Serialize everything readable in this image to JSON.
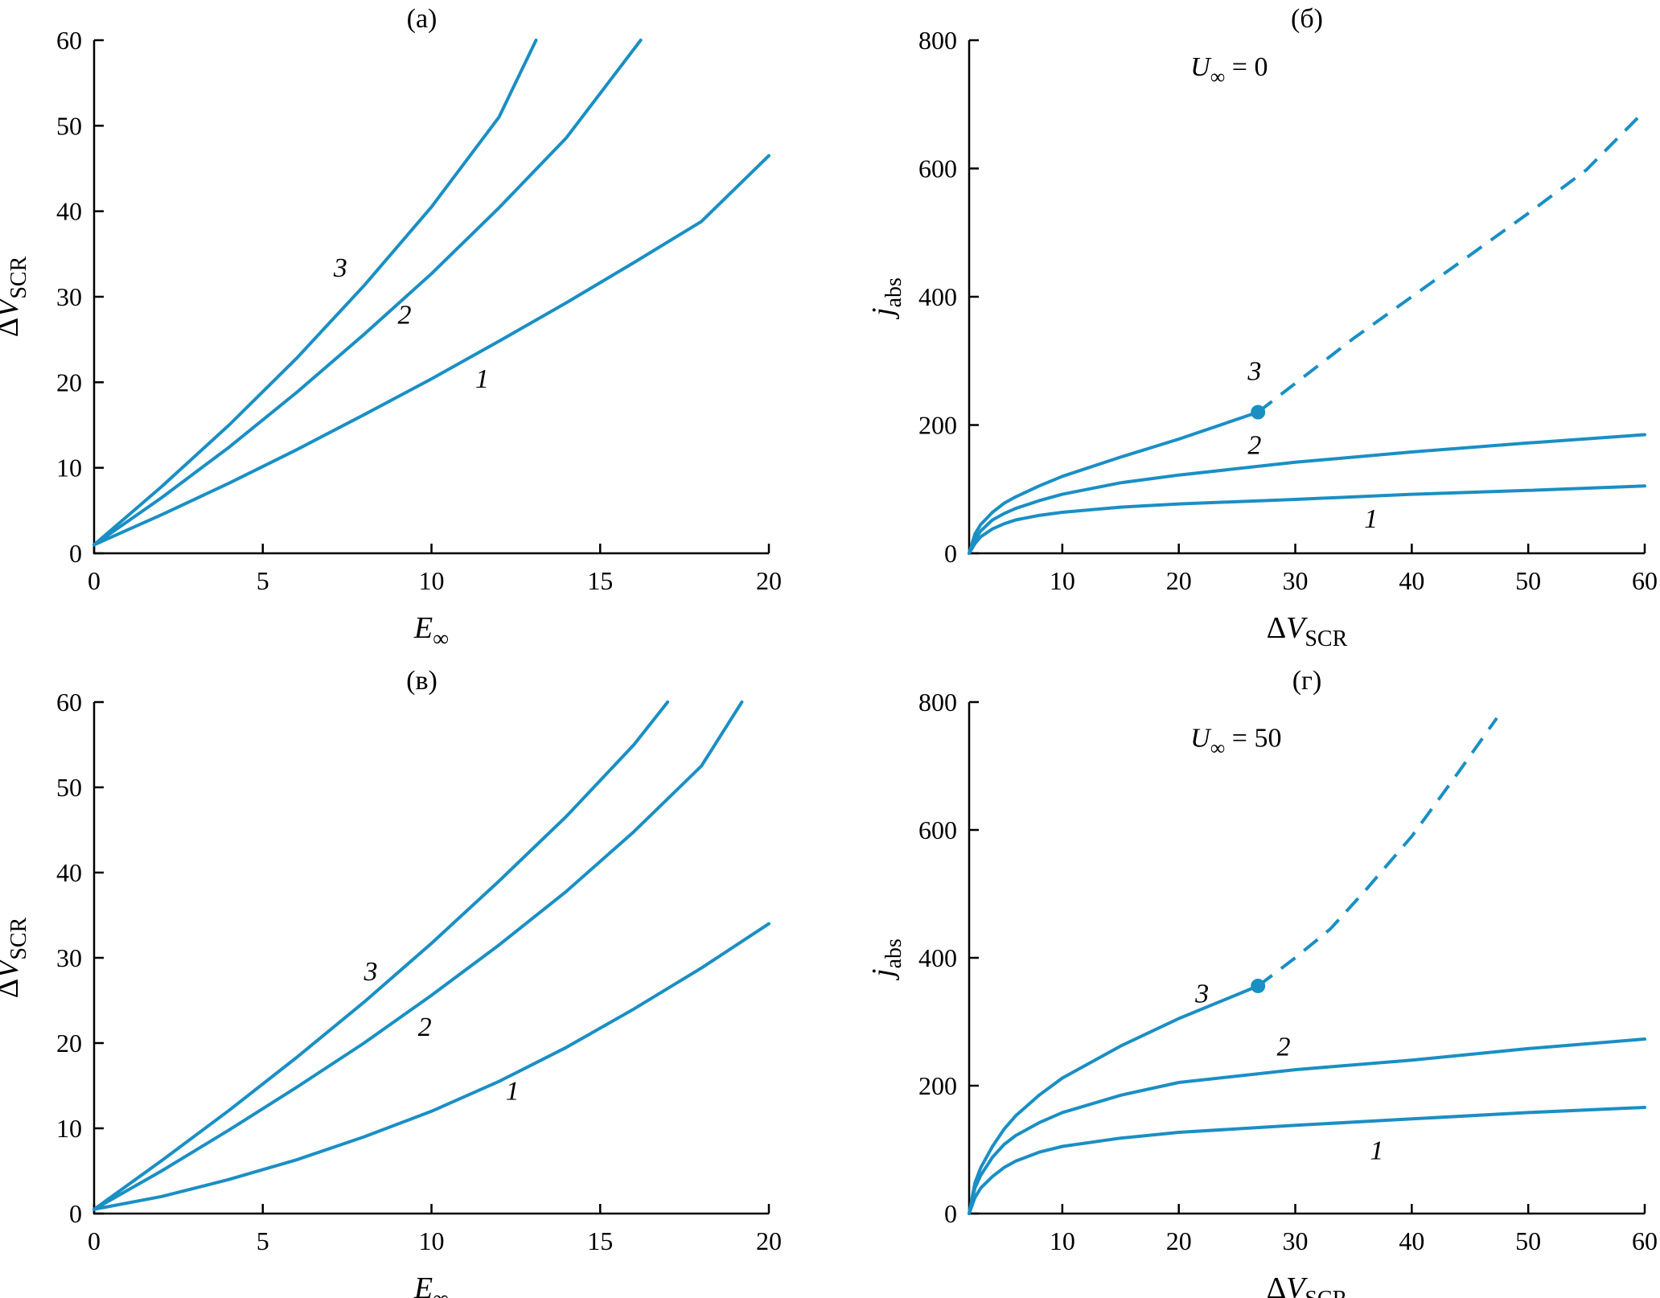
{
  "chart_data": [
    {
      "id": "a",
      "type": "line",
      "title": "(а)",
      "xlabel": "E",
      "xlabel_sub": "∞",
      "ylabel_prefix": "Δ",
      "ylabel": "V",
      "ylabel_sub": "SCR",
      "xlim": [
        0,
        20
      ],
      "ylim": [
        0,
        60
      ],
      "xticks": [
        0,
        5,
        10,
        15,
        20
      ],
      "yticks": [
        0,
        10,
        20,
        30,
        40,
        50,
        60
      ],
      "annotation": null,
      "series": [
        {
          "label": "1",
          "label_at": [
            11.5,
            20.5
          ],
          "x": [
            0,
            2,
            4,
            6,
            8,
            10,
            12,
            14,
            16,
            18,
            20
          ],
          "y": [
            1,
            4.5,
            8.2,
            12.1,
            16.2,
            20.4,
            24.8,
            29.3,
            34.0,
            38.8,
            46.5
          ]
        },
        {
          "label": "2",
          "label_at": [
            9.2,
            28.0
          ],
          "x": [
            0,
            2,
            4,
            6,
            8,
            10,
            12,
            14,
            16.2
          ],
          "y": [
            1,
            6.5,
            12.4,
            18.8,
            25.6,
            32.7,
            40.4,
            48.6,
            60
          ]
        },
        {
          "label": "3",
          "label_at": [
            7.3,
            33.5
          ],
          "x": [
            0,
            2,
            4,
            6,
            8,
            10,
            12,
            13.1
          ],
          "y": [
            1,
            7.8,
            15.0,
            22.8,
            31.3,
            40.5,
            51.0,
            60
          ]
        }
      ]
    },
    {
      "id": "b",
      "type": "line",
      "title": "(б)",
      "xlabel_prefix": "Δ",
      "xlabel": "V",
      "xlabel_sub": "SCR",
      "ylabel": "j",
      "ylabel_sub": "abs",
      "xlim": [
        2,
        60
      ],
      "ylim": [
        0,
        800
      ],
      "xticks": [
        10,
        20,
        30,
        40,
        50,
        60
      ],
      "yticks": [
        0,
        200,
        400,
        600,
        800
      ],
      "annotation": {
        "var": "U",
        "sub": "∞",
        "text": " = 0",
        "at": [
          21,
          745
        ]
      },
      "series": [
        {
          "label": "1",
          "label_at": [
            36.5,
            55
          ],
          "x": [
            2,
            2.5,
            3,
            4,
            5,
            6,
            8,
            10,
            15,
            20,
            30,
            40,
            50,
            60
          ],
          "y": [
            0,
            15,
            26,
            38,
            46,
            52,
            59,
            64,
            72,
            77,
            84,
            92,
            98,
            105
          ]
        },
        {
          "label": "2",
          "label_at": [
            26.5,
            170
          ],
          "x": [
            2,
            2.5,
            3,
            4,
            5,
            6,
            8,
            10,
            15,
            20,
            30,
            40,
            50,
            60
          ],
          "y": [
            0,
            22,
            35,
            52,
            62,
            70,
            82,
            92,
            110,
            122,
            142,
            158,
            172,
            185
          ]
        },
        {
          "label": "3",
          "label_at": [
            26.5,
            285
          ],
          "x": [
            2,
            2.5,
            3,
            4,
            5,
            6,
            8,
            10,
            15,
            20,
            26.8
          ],
          "y": [
            0,
            30,
            45,
            64,
            78,
            88,
            105,
            120,
            150,
            178,
            220
          ],
          "marker_end": true
        },
        {
          "x": [
            26.8,
            30,
            35,
            40,
            45,
            50,
            55,
            60
          ],
          "y": [
            220,
            265,
            335,
            400,
            465,
            530,
            598,
            690
          ],
          "dashed": true
        }
      ]
    },
    {
      "id": "v",
      "type": "line",
      "title": "(в)",
      "xlabel": "E",
      "xlabel_sub": "∞",
      "ylabel_prefix": "Δ",
      "ylabel": "V",
      "ylabel_sub": "SCR",
      "xlim": [
        0,
        20
      ],
      "ylim": [
        0,
        60
      ],
      "xticks": [
        0,
        5,
        10,
        15,
        20
      ],
      "yticks": [
        0,
        10,
        20,
        30,
        40,
        50,
        60
      ],
      "annotation": null,
      "series": [
        {
          "label": "1",
          "label_at": [
            12.4,
            14.5
          ],
          "x": [
            0,
            2,
            4,
            6,
            8,
            10,
            12,
            14,
            16,
            18,
            20
          ],
          "y": [
            0.5,
            2.0,
            4.0,
            6.3,
            9.0,
            12.0,
            15.5,
            19.5,
            24.0,
            28.8,
            34.0
          ]
        },
        {
          "label": "2",
          "label_at": [
            9.8,
            22.0
          ],
          "x": [
            0,
            2,
            4,
            6,
            8,
            10,
            12,
            14,
            16,
            18,
            19.2
          ],
          "y": [
            0.5,
            5.0,
            9.8,
            14.8,
            20.0,
            25.6,
            31.5,
            37.8,
            44.8,
            52.5,
            60
          ]
        },
        {
          "label": "3",
          "label_at": [
            8.2,
            28.5
          ],
          "x": [
            0,
            2,
            4,
            6,
            8,
            10,
            12,
            14,
            16,
            17.0
          ],
          "y": [
            0.5,
            6.2,
            12.1,
            18.3,
            24.8,
            31.7,
            39.0,
            46.6,
            55.0,
            60
          ]
        }
      ]
    },
    {
      "id": "g",
      "type": "line",
      "title": "(г)",
      "xlabel_prefix": "Δ",
      "xlabel": "V",
      "xlabel_sub": "SCR",
      "ylabel": "j",
      "ylabel_sub": "abs",
      "xlim": [
        2,
        60
      ],
      "ylim": [
        0,
        800
      ],
      "xticks": [
        10,
        20,
        30,
        40,
        50,
        60
      ],
      "yticks": [
        0,
        200,
        400,
        600,
        800
      ],
      "annotation": {
        "var": "U",
        "sub": "∞",
        "text": " = 50",
        "at": [
          21,
          730
        ]
      },
      "series": [
        {
          "label": "1",
          "label_at": [
            37,
            100
          ],
          "x": [
            2,
            2.5,
            3,
            4,
            5,
            6,
            8,
            10,
            15,
            20,
            30,
            40,
            50,
            60
          ],
          "y": [
            0,
            25,
            40,
            58,
            72,
            82,
            96,
            105,
            118,
            127,
            138,
            148,
            158,
            166
          ]
        },
        {
          "label": "2",
          "label_at": [
            29,
            262
          ],
          "x": [
            2,
            2.5,
            3,
            4,
            5,
            6,
            8,
            10,
            15,
            20,
            30,
            40,
            50,
            60
          ],
          "y": [
            0,
            40,
            60,
            88,
            108,
            122,
            142,
            158,
            185,
            205,
            225,
            240,
            258,
            273
          ]
        },
        {
          "label": "3",
          "label_at": [
            22,
            345
          ],
          "x": [
            2,
            2.5,
            3,
            4,
            5,
            6,
            8,
            10,
            15,
            20,
            26.8
          ],
          "y": [
            0,
            48,
            72,
            105,
            132,
            153,
            185,
            212,
            262,
            305,
            356
          ],
          "marker_end": true
        },
        {
          "x": [
            26.8,
            30,
            33,
            36,
            40,
            44,
            47.3
          ],
          "y": [
            356,
            400,
            445,
            505,
            590,
            690,
            775
          ],
          "dashed": true
        }
      ]
    }
  ]
}
